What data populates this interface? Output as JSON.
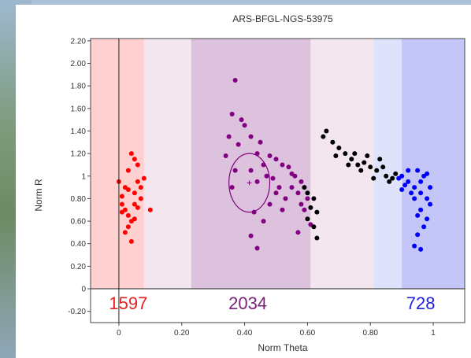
{
  "chart_data": {
    "type": "scatter",
    "title": "ARS-BFGL-NGS-53975",
    "xlabel": "Norm Theta",
    "ylabel": "Norm R",
    "xlim": [
      -0.09,
      1.1
    ],
    "ylim": [
      -0.3,
      2.22
    ],
    "x_ticks": [
      0,
      0.2,
      0.4,
      0.6,
      0.8,
      1
    ],
    "x_tick_labels": [
      "0",
      "0.20",
      "0.40",
      "0.60",
      "0.80",
      "1"
    ],
    "y_ticks": [
      -0.2,
      0,
      0.2,
      0.4,
      0.6,
      0.8,
      1,
      1.2,
      1.4,
      1.6,
      1.8,
      2.0,
      2.2
    ],
    "y_tick_labels": [
      "-0.20",
      "0",
      "0.20",
      "0.40",
      "0.60",
      "0.80",
      "1",
      "1.20",
      "1.40",
      "1.60",
      "1.80",
      "2.00",
      "2.20"
    ],
    "cluster_counts": [
      {
        "label": "1597",
        "x": 0.03,
        "color": "#e52222"
      },
      {
        "label": "2034",
        "x": 0.41,
        "color": "#7a1f7a"
      },
      {
        "label": "728",
        "x": 0.96,
        "color": "#2222dd"
      }
    ],
    "series": [
      {
        "color": "#ff0000",
        "points": [
          [
            0.0,
            0.95
          ],
          [
            0.01,
            0.82
          ],
          [
            0.02,
            0.7
          ],
          [
            0.03,
            0.55
          ],
          [
            0.04,
            0.42
          ],
          [
            0.05,
            0.62
          ],
          [
            0.06,
            0.72
          ],
          [
            0.07,
            0.8
          ],
          [
            0.1,
            0.7
          ],
          [
            0.08,
            0.98
          ],
          [
            0.05,
            1.15
          ],
          [
            0.03,
            1.05
          ],
          [
            0.02,
            0.9
          ],
          [
            0.04,
            1.2
          ],
          [
            0.06,
            1.1
          ],
          [
            0.01,
            0.75
          ],
          [
            0.03,
            0.65
          ],
          [
            0.05,
            0.85
          ],
          [
            0.07,
            0.9
          ],
          [
            0.02,
            0.5
          ],
          [
            0.04,
            0.6
          ],
          [
            0.05,
            0.75
          ],
          [
            0.06,
            0.95
          ],
          [
            0.03,
            0.88
          ],
          [
            0.01,
            0.68
          ]
        ]
      },
      {
        "color": "#800080",
        "points": [
          [
            0.37,
            1.85
          ],
          [
            0.36,
            1.55
          ],
          [
            0.39,
            1.5
          ],
          [
            0.42,
            1.35
          ],
          [
            0.45,
            1.3
          ],
          [
            0.44,
            1.2
          ],
          [
            0.48,
            1.18
          ],
          [
            0.5,
            1.15
          ],
          [
            0.52,
            1.1
          ],
          [
            0.54,
            1.08
          ],
          [
            0.56,
            1.0
          ],
          [
            0.58,
            0.95
          ],
          [
            0.55,
            0.9
          ],
          [
            0.57,
            0.85
          ],
          [
            0.6,
            0.8
          ],
          [
            0.58,
            0.75
          ],
          [
            0.59,
            0.7
          ],
          [
            0.53,
            0.8
          ],
          [
            0.51,
            0.9
          ],
          [
            0.49,
            0.98
          ],
          [
            0.47,
            1.0
          ],
          [
            0.5,
            0.85
          ],
          [
            0.52,
            0.7
          ],
          [
            0.48,
            0.75
          ],
          [
            0.44,
            0.95
          ],
          [
            0.42,
            1.05
          ],
          [
            0.46,
            1.1
          ],
          [
            0.4,
            1.45
          ],
          [
            0.34,
            1.18
          ],
          [
            0.37,
            1.05
          ],
          [
            0.36,
            0.9
          ],
          [
            0.43,
            0.68
          ],
          [
            0.46,
            0.6
          ],
          [
            0.42,
            0.47
          ],
          [
            0.44,
            0.36
          ],
          [
            0.57,
            0.5
          ],
          [
            0.61,
            0.57
          ],
          [
            0.55,
            1.02
          ],
          [
            0.38,
            1.28
          ],
          [
            0.35,
            1.35
          ]
        ]
      },
      {
        "color": "#000000",
        "points": [
          [
            0.59,
            0.9
          ],
          [
            0.6,
            0.85
          ],
          [
            0.62,
            0.8
          ],
          [
            0.61,
            0.72
          ],
          [
            0.63,
            0.68
          ],
          [
            0.6,
            0.62
          ],
          [
            0.62,
            0.55
          ],
          [
            0.63,
            0.45
          ],
          [
            0.65,
            1.35
          ],
          [
            0.66,
            1.4
          ],
          [
            0.68,
            1.3
          ],
          [
            0.7,
            1.25
          ],
          [
            0.72,
            1.2
          ],
          [
            0.74,
            1.15
          ],
          [
            0.76,
            1.1
          ],
          [
            0.78,
            1.12
          ],
          [
            0.8,
            1.08
          ],
          [
            0.82,
            1.05
          ],
          [
            0.85,
            1.0
          ],
          [
            0.87,
            0.98
          ],
          [
            0.83,
            1.15
          ],
          [
            0.79,
            1.18
          ],
          [
            0.81,
            0.98
          ],
          [
            0.86,
            0.95
          ],
          [
            0.84,
            1.08
          ],
          [
            0.77,
            1.05
          ],
          [
            0.73,
            1.1
          ],
          [
            0.69,
            1.18
          ],
          [
            0.88,
            1.02
          ],
          [
            0.75,
            1.2
          ]
        ]
      },
      {
        "color": "#0000ff",
        "points": [
          [
            0.9,
            1.0
          ],
          [
            0.92,
            0.95
          ],
          [
            0.94,
            0.9
          ],
          [
            0.96,
            0.85
          ],
          [
            0.98,
            0.8
          ],
          [
            0.95,
            1.05
          ],
          [
            0.97,
            1.0
          ],
          [
            0.99,
            0.75
          ],
          [
            0.93,
            0.85
          ],
          [
            0.91,
            0.92
          ],
          [
            0.96,
            0.7
          ],
          [
            0.98,
            0.62
          ],
          [
            0.97,
            0.55
          ],
          [
            0.95,
            0.48
          ],
          [
            0.94,
            0.38
          ],
          [
            0.96,
            0.35
          ],
          [
            0.89,
            0.98
          ],
          [
            0.92,
            1.05
          ],
          [
            0.94,
            0.8
          ],
          [
            0.99,
            0.9
          ],
          [
            0.96,
            0.95
          ],
          [
            0.98,
            1.02
          ],
          [
            0.9,
            0.88
          ],
          [
            0.95,
            0.65
          ]
        ]
      }
    ],
    "regions": [
      {
        "x": [
          -0.09,
          0.08
        ],
        "color": "#ffd0d0"
      },
      {
        "x": [
          0.08,
          0.23
        ],
        "color": "#f3e6ee"
      },
      {
        "x": [
          0.23,
          0.61
        ],
        "color": "#dcc2dc"
      },
      {
        "x": [
          0.61,
          0.81
        ],
        "color": "#f3e6ee"
      },
      {
        "x": [
          0.81,
          0.9
        ],
        "color": "#dfe2fb"
      },
      {
        "x": [
          0.9,
          1.1
        ],
        "color": "#c4c6f7"
      }
    ],
    "centroid": {
      "x": 0.415,
      "y": 0.94
    },
    "ellipse": {
      "cx": 0.415,
      "cy": 0.94,
      "rx": 0.065,
      "ry": 0.26,
      "color": "#800080"
    },
    "grid": false,
    "zero_line": true
  }
}
